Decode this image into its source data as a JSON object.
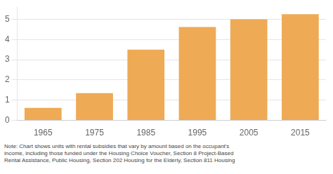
{
  "chart_data": {
    "type": "bar",
    "categories": [
      "1965",
      "1975",
      "1985",
      "1995",
      "2005",
      "2015"
    ],
    "values": [
      0.62,
      1.35,
      3.5,
      4.62,
      5.0,
      5.25
    ],
    "color": "#EEAA55",
    "ylim": [
      0,
      5.6
    ],
    "yticks": [
      0,
      1,
      2,
      3,
      4,
      5
    ],
    "grid": true,
    "annotations": [
      "Note: Chart shows units with rental subsidies that vary by amount based on the occupant's",
      "income, including those funded under the Housing Choice Voucher, Section 8 Project-Based",
      "Rental Assistance, Public Housing, Section 202 Housing for the Elderly, Section 811 Housing"
    ]
  }
}
